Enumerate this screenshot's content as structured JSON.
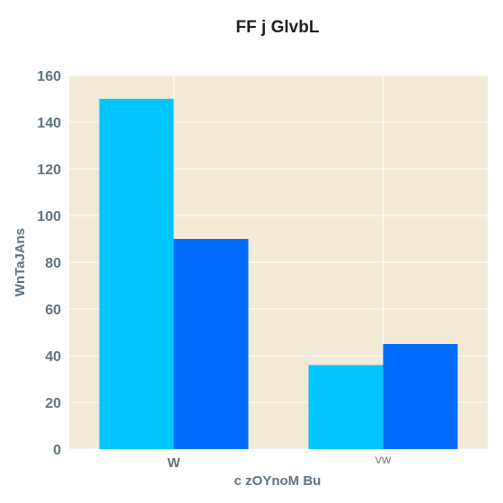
{
  "chart_data": {
    "type": "bar",
    "title": "FF j GlvbL",
    "xlabel": "c zOYnoM Bu",
    "ylabel": "WnTaJAns",
    "categories": [
      "W",
      "VW"
    ],
    "series": [
      {
        "values": [
          150,
          36
        ],
        "color": "#00c5ff"
      },
      {
        "values": [
          90,
          45
        ],
        "color": "#006cff"
      }
    ],
    "ylim": [
      0,
      160
    ],
    "yticks": [
      0,
      20,
      40,
      60,
      80,
      100,
      120,
      140,
      160
    ],
    "grid": true,
    "legend": "none",
    "background_color": "#f2ead7"
  }
}
